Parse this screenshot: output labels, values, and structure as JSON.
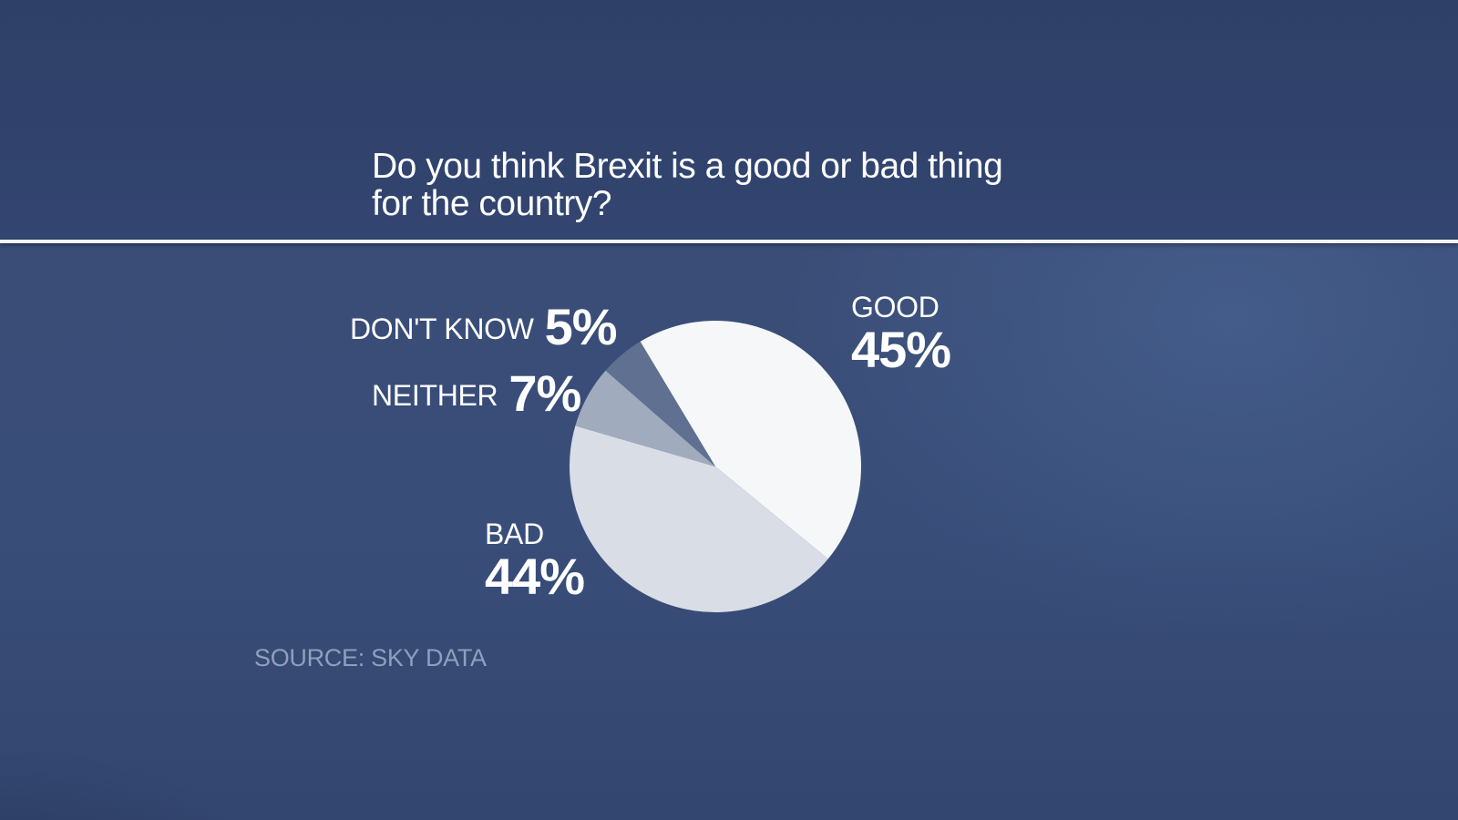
{
  "title": "Do you think Brexit is a good or bad thing for the country?",
  "title_lines": [
    "Do you think Brexit is a good or bad thing",
    "for the country?"
  ],
  "source": "SOURCE: SKY DATA",
  "labels": {
    "good": {
      "name": "GOOD",
      "pct": "45%"
    },
    "bad": {
      "name": "BAD",
      "pct": "44%"
    },
    "neither": {
      "name": "NEITHER",
      "pct": "7%"
    },
    "dont_know": {
      "name": "DON'T KNOW",
      "pct": "5%"
    }
  },
  "colors": {
    "background": "#34466f",
    "good": "#f5f7f8",
    "bad": "#d9dde6",
    "neither": "#a0abbd",
    "dont_know": "#5f7090",
    "source_text": "#8f9fbd"
  },
  "chart_data": {
    "type": "pie",
    "title": "Do you think Brexit is a good or bad thing for the country?",
    "categories": [
      "GOOD",
      "BAD",
      "NEITHER",
      "DON'T KNOW"
    ],
    "values": [
      45,
      44,
      7,
      5
    ],
    "unit": "%",
    "source": "SOURCE: SKY DATA",
    "start_angle_deg": -31,
    "direction": "clockwise",
    "colors": [
      "#f5f7f8",
      "#d9dde6",
      "#a0abbd",
      "#5f7090"
    ],
    "legend": "none (direct labels)"
  }
}
